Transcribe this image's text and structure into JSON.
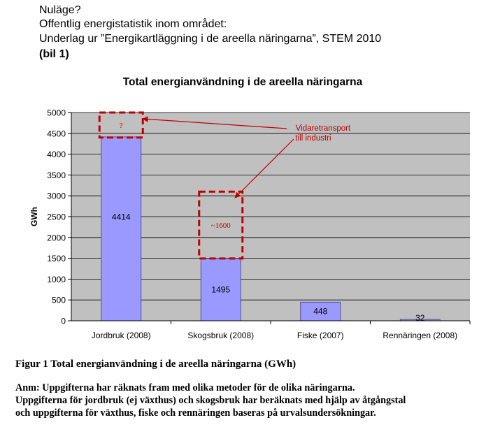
{
  "header": {
    "line1": "Nuläge?",
    "line2": "Offentlig energistatistik inom området:",
    "line3": "Underlag ur  ”Energikartläggning i de areella näringarna”, STEM 2010",
    "line4": "(bil 1)"
  },
  "chart_data": {
    "type": "bar",
    "title": "Total energianvändning i de areella näringarna",
    "ylabel": "GWh",
    "xlabel": "",
    "ylim": [
      0,
      5000
    ],
    "yticks": [
      0,
      500,
      1000,
      1500,
      2000,
      2500,
      3000,
      3500,
      4000,
      4500,
      5000
    ],
    "grid": true,
    "categories": [
      "Jordbruk (2008)",
      "Skogsbruk (2008)",
      "Fiske (2007)",
      "Rennäringen (2008)"
    ],
    "values": [
      4414,
      1495,
      448,
      32
    ],
    "data_labels": [
      "4414",
      "1495",
      "448",
      "32"
    ],
    "bar_color": "#9999ff",
    "plot_background": "#c0c0c0",
    "annotations": {
      "boxes": [
        {
          "category": "Jordbruk (2008)",
          "from": 4400,
          "to": 5000,
          "label": "?"
        },
        {
          "category": "Skogsbruk (2008)",
          "from": 1495,
          "to": 3100,
          "label": "~1600"
        }
      ],
      "note_line1": "Vidaretransport",
      "note_line2": "till industri",
      "color": "#c00000"
    }
  },
  "caption": {
    "title": "Figur 1 Total energianvändning i de areella näringarna (GWh)",
    "line1": "Anm: Uppgifterna har räknats fram med olika metoder för de olika näringarna.",
    "line2": "Uppgifterna för jordbruk (ej växthus) och skogsbruk har beräknats med hjälp av åtgångstal",
    "line3": "och uppgifterna för växthus, fiske och rennäringen baseras på urvalsundersökningar."
  }
}
